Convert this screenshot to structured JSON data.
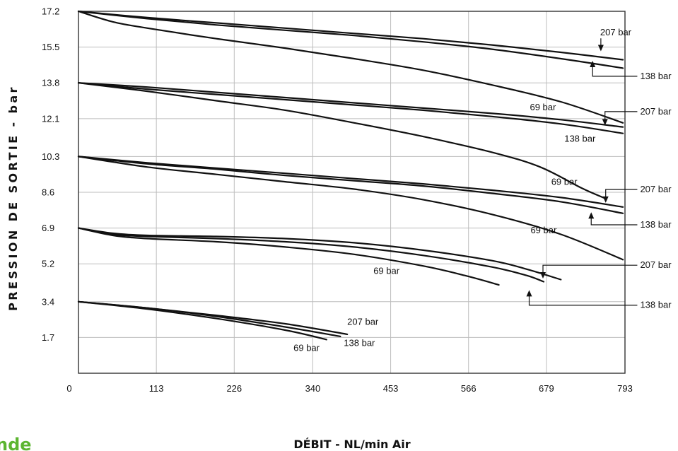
{
  "chart_data": {
    "type": "line",
    "title": "",
    "xlabel": "DÉBIT - NL/min Air",
    "ylabel": "PRESSION DE SORTIE - bar",
    "xlim": [
      0,
      793
    ],
    "ylim": [
      0,
      17.2
    ],
    "x_ticks": [
      "0",
      "113",
      "226",
      "340",
      "453",
      "566",
      "679",
      "793"
    ],
    "y_ticks": [
      "1.7",
      "3.4",
      "5.2",
      "6.9",
      "8.6",
      "10.3",
      "12.1",
      "13.8",
      "15.5",
      "17.2"
    ],
    "grid": true,
    "legend": "none",
    "series": [
      {
        "name": "207 bar",
        "group": 17.2,
        "points": [
          [
            0,
            17.2
          ],
          [
            100,
            16.9
          ],
          [
            200,
            16.65
          ],
          [
            300,
            16.4
          ],
          [
            400,
            16.15
          ],
          [
            500,
            15.9
          ],
          [
            600,
            15.6
          ],
          [
            700,
            15.25
          ],
          [
            790,
            14.9
          ]
        ]
      },
      {
        "name": "138 bar",
        "group": 17.2,
        "points": [
          [
            0,
            17.2
          ],
          [
            100,
            16.85
          ],
          [
            200,
            16.55
          ],
          [
            300,
            16.3
          ],
          [
            400,
            16.05
          ],
          [
            500,
            15.75
          ],
          [
            600,
            15.4
          ],
          [
            700,
            14.95
          ],
          [
            790,
            14.5
          ]
        ]
      },
      {
        "name": "69 bar",
        "group": 17.2,
        "points": [
          [
            0,
            17.2
          ],
          [
            50,
            16.7
          ],
          [
            100,
            16.4
          ],
          [
            200,
            15.9
          ],
          [
            300,
            15.45
          ],
          [
            400,
            14.95
          ],
          [
            500,
            14.4
          ],
          [
            600,
            13.7
          ],
          [
            700,
            12.9
          ],
          [
            790,
            11.9
          ]
        ]
      },
      {
        "name": "207 bar",
        "group": 13.8,
        "points": [
          [
            0,
            13.8
          ],
          [
            100,
            13.6
          ],
          [
            200,
            13.35
          ],
          [
            300,
            13.1
          ],
          [
            400,
            12.85
          ],
          [
            500,
            12.6
          ],
          [
            600,
            12.35
          ],
          [
            700,
            12.05
          ],
          [
            790,
            11.7
          ]
        ]
      },
      {
        "name": "138 bar",
        "group": 13.8,
        "points": [
          [
            0,
            13.8
          ],
          [
            100,
            13.5
          ],
          [
            200,
            13.25
          ],
          [
            300,
            13.0
          ],
          [
            400,
            12.75
          ],
          [
            500,
            12.5
          ],
          [
            600,
            12.2
          ],
          [
            700,
            11.85
          ],
          [
            790,
            11.4
          ]
        ]
      },
      {
        "name": "69 bar",
        "group": 13.8,
        "points": [
          [
            0,
            13.8
          ],
          [
            100,
            13.4
          ],
          [
            200,
            12.95
          ],
          [
            300,
            12.5
          ],
          [
            400,
            11.9
          ],
          [
            500,
            11.25
          ],
          [
            600,
            10.5
          ],
          [
            670,
            9.8
          ],
          [
            730,
            8.8
          ],
          [
            765,
            8.3
          ]
        ]
      },
      {
        "name": "207 bar",
        "group": 10.3,
        "points": [
          [
            0,
            10.3
          ],
          [
            100,
            10.0
          ],
          [
            200,
            9.75
          ],
          [
            300,
            9.5
          ],
          [
            400,
            9.25
          ],
          [
            500,
            9.0
          ],
          [
            600,
            8.7
          ],
          [
            700,
            8.35
          ],
          [
            790,
            7.9
          ]
        ]
      },
      {
        "name": "138 bar",
        "group": 10.3,
        "points": [
          [
            0,
            10.3
          ],
          [
            100,
            9.95
          ],
          [
            200,
            9.7
          ],
          [
            300,
            9.4
          ],
          [
            400,
            9.15
          ],
          [
            500,
            8.9
          ],
          [
            600,
            8.55
          ],
          [
            700,
            8.15
          ],
          [
            790,
            7.6
          ]
        ]
      },
      {
        "name": "69 bar",
        "group": 10.3,
        "points": [
          [
            0,
            10.3
          ],
          [
            100,
            9.8
          ],
          [
            200,
            9.45
          ],
          [
            300,
            9.1
          ],
          [
            400,
            8.75
          ],
          [
            500,
            8.25
          ],
          [
            600,
            7.55
          ],
          [
            700,
            6.6
          ],
          [
            790,
            5.4
          ]
        ]
      },
      {
        "name": "207 bar",
        "group": 6.9,
        "points": [
          [
            0,
            6.9
          ],
          [
            50,
            6.65
          ],
          [
            100,
            6.55
          ],
          [
            200,
            6.5
          ],
          [
            300,
            6.4
          ],
          [
            400,
            6.2
          ],
          [
            500,
            5.85
          ],
          [
            600,
            5.35
          ],
          [
            650,
            4.95
          ],
          [
            700,
            4.45
          ]
        ]
      },
      {
        "name": "138 bar",
        "group": 6.9,
        "points": [
          [
            0,
            6.9
          ],
          [
            50,
            6.6
          ],
          [
            100,
            6.5
          ],
          [
            200,
            6.4
          ],
          [
            300,
            6.25
          ],
          [
            400,
            6.0
          ],
          [
            500,
            5.6
          ],
          [
            600,
            5.05
          ],
          [
            650,
            4.65
          ],
          [
            675,
            4.35
          ]
        ]
      },
      {
        "name": "69 bar",
        "group": 6.9,
        "points": [
          [
            0,
            6.9
          ],
          [
            50,
            6.55
          ],
          [
            100,
            6.4
          ],
          [
            200,
            6.25
          ],
          [
            300,
            6.0
          ],
          [
            400,
            5.65
          ],
          [
            500,
            5.1
          ],
          [
            560,
            4.65
          ],
          [
            610,
            4.2
          ]
        ]
      },
      {
        "name": "207 bar",
        "group": 3.4,
        "points": [
          [
            0,
            3.4
          ],
          [
            100,
            3.1
          ],
          [
            200,
            2.75
          ],
          [
            300,
            2.35
          ],
          [
            390,
            1.85
          ]
        ]
      },
      {
        "name": "138 bar",
        "group": 3.4,
        "points": [
          [
            0,
            3.4
          ],
          [
            100,
            3.1
          ],
          [
            200,
            2.7
          ],
          [
            300,
            2.2
          ],
          [
            380,
            1.75
          ]
        ]
      },
      {
        "name": "69 bar",
        "group": 3.4,
        "points": [
          [
            0,
            3.4
          ],
          [
            100,
            3.05
          ],
          [
            200,
            2.6
          ],
          [
            300,
            2.05
          ],
          [
            360,
            1.6
          ]
        ]
      }
    ],
    "annotations": [
      {
        "text": "207 bar",
        "x": 757,
        "y": 16.05,
        "arrow_to": [
          758,
          15.3
        ]
      },
      {
        "text": "138 bar",
        "x": 815,
        "y": 13.98,
        "arrow_to": [
          746,
          14.85
        ]
      },
      {
        "text": "69 bar",
        "x": 655,
        "y": 12.5
      },
      {
        "text": "207 bar",
        "x": 815,
        "y": 12.3,
        "arrow_to": [
          764,
          11.78
        ]
      },
      {
        "text": "138 bar",
        "x": 705,
        "y": 11.0
      },
      {
        "text": "69 bar",
        "x": 686,
        "y": 8.95
      },
      {
        "text": "207 bar",
        "x": 815,
        "y": 8.6,
        "arrow_to": [
          765,
          8.1
        ]
      },
      {
        "text": "138 bar",
        "x": 815,
        "y": 6.92,
        "arrow_to": [
          744,
          7.65
        ]
      },
      {
        "text": "69 bar",
        "x": 656,
        "y": 6.65
      },
      {
        "text": "207 bar",
        "x": 815,
        "y": 5.0,
        "arrow_to": [
          674,
          4.5
        ]
      },
      {
        "text": "138 bar",
        "x": 815,
        "y": 3.1,
        "arrow_to": [
          654,
          3.95
        ]
      },
      {
        "text": "69 bar",
        "x": 428,
        "y": 4.72
      },
      {
        "text": "207 bar",
        "x": 390,
        "y": 2.3
      },
      {
        "text": "138 bar",
        "x": 385,
        "y": 1.3
      },
      {
        "text": "69 bar",
        "x": 312,
        "y": 1.05
      }
    ],
    "colors": {
      "line": "#111111",
      "grid": "#bdbdbd",
      "brand": "#5cb531"
    }
  },
  "brand_fragment": "nde"
}
